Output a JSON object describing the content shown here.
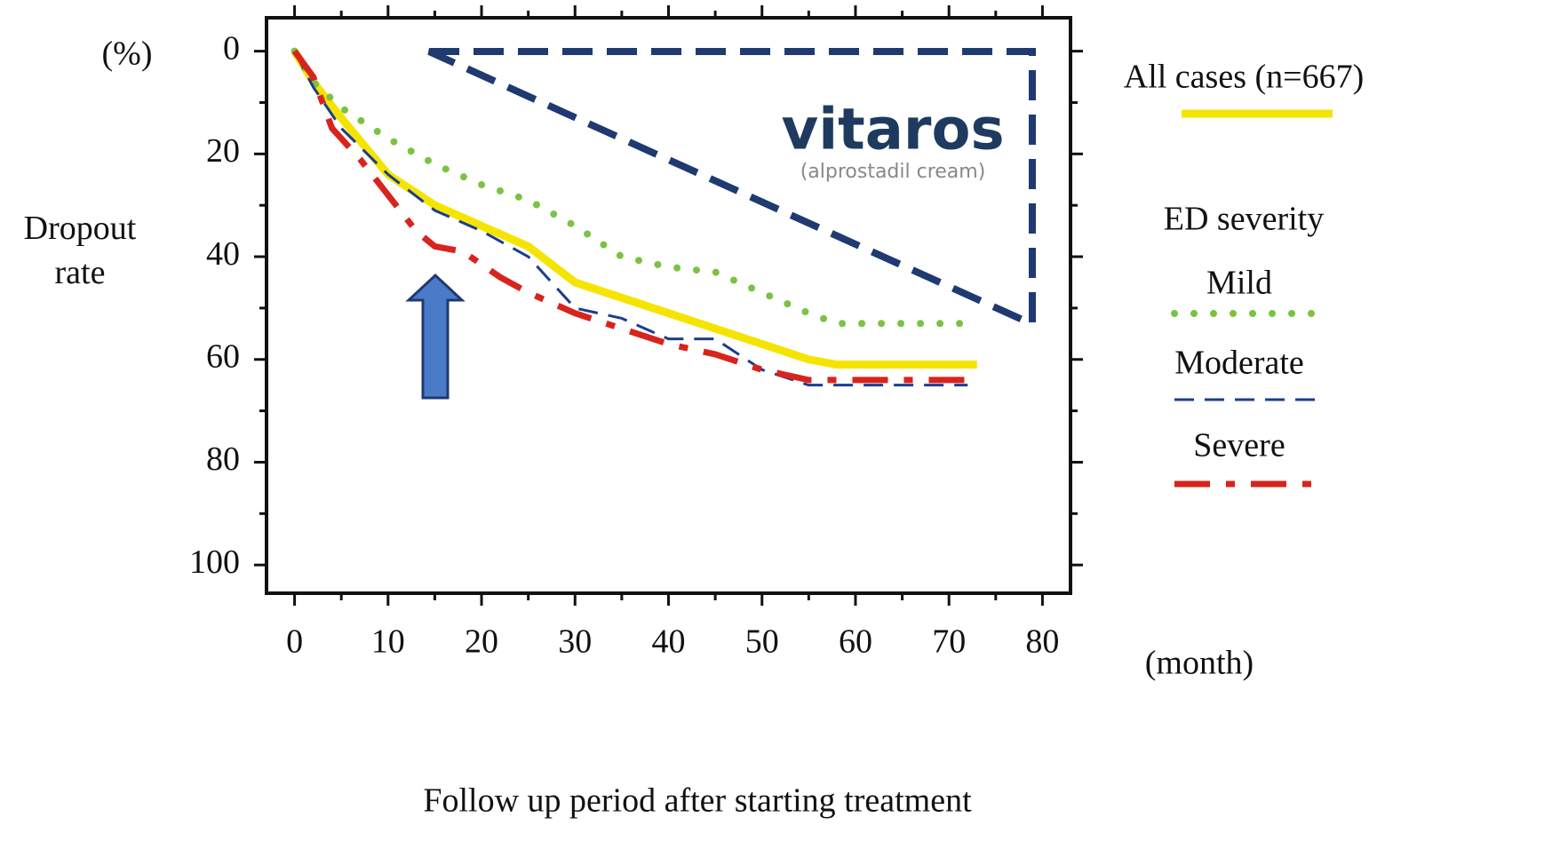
{
  "chart_data": {
    "type": "line",
    "y_label": "Dropout rate",
    "y_unit": "(%)",
    "x_label": "Follow up period after starting treatment",
    "x_unit": "(month)",
    "legend_title": "ED severity",
    "annotations": [
      "vitaros",
      "(alprostadil cream)"
    ],
    "xlim": [
      -3,
      83
    ],
    "ylim": [
      -6.5,
      105.5
    ],
    "y_reversed": true,
    "xticks": [
      0,
      10,
      20,
      30,
      40,
      50,
      60,
      70,
      80
    ],
    "yticks": [
      0,
      20,
      40,
      60,
      80,
      100
    ],
    "xminorticks": [
      5,
      15,
      25,
      35,
      45,
      55,
      65,
      75
    ],
    "yminorticks": [
      10,
      30,
      50,
      70,
      90
    ],
    "series": [
      {
        "name": "All cases  (n=667)",
        "color": "#f5e400",
        "dash": "solid",
        "width": 9,
        "x": [
          0,
          2,
          5,
          10,
          15,
          20,
          25,
          30,
          35,
          40,
          45,
          50,
          55,
          58,
          73
        ],
        "values": [
          0,
          6,
          13,
          24,
          30,
          34,
          38,
          45,
          48,
          51,
          54,
          57,
          60,
          61,
          61
        ]
      },
      {
        "name": "Mild",
        "color": "#7cc242",
        "dash": "dotted",
        "width": 8,
        "x": [
          0,
          2,
          5,
          10,
          15,
          20,
          25,
          30,
          35,
          40,
          45,
          50,
          55,
          58,
          72
        ],
        "values": [
          0,
          6,
          11,
          17,
          22,
          26,
          29,
          34,
          40,
          42,
          43,
          47,
          51,
          53,
          53
        ]
      },
      {
        "name": "Moderate",
        "color": "#1a3d8f",
        "dash": "dashed",
        "width": 3,
        "x": [
          0,
          2,
          5,
          10,
          15,
          20,
          25,
          30,
          35,
          40,
          45,
          50,
          55,
          72
        ],
        "values": [
          0,
          7,
          15,
          24,
          31,
          35,
          40,
          50,
          52,
          56,
          56,
          62,
          65,
          65
        ]
      },
      {
        "name": "Severe",
        "color": "#d9231d",
        "dash": "dashdot",
        "width": 7,
        "x": [
          0,
          2,
          4,
          7,
          10,
          13,
          15,
          18,
          22,
          25,
          30,
          35,
          40,
          45,
          50,
          55,
          72
        ],
        "values": [
          0,
          5,
          15,
          21,
          28,
          35,
          38,
          39,
          44,
          47,
          51,
          54,
          57,
          59,
          62,
          64,
          64
        ]
      }
    ]
  }
}
